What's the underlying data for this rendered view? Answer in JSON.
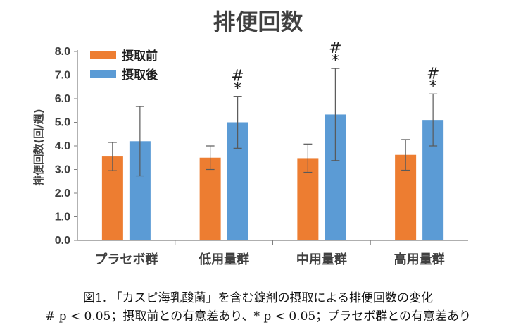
{
  "chart_data": {
    "type": "bar",
    "title": "排便回数",
    "ylabel": "排便回数(回/週)",
    "xlabel": "",
    "ylim": [
      0,
      8
    ],
    "yticks": [
      "0.0",
      "1.0",
      "2.0",
      "3.0",
      "4.0",
      "5.0",
      "6.0",
      "7.0",
      "8.0"
    ],
    "categories": [
      "プラセボ群",
      "低用量群",
      "中用量群",
      "高用量群"
    ],
    "legend_position": "top-left",
    "grid": false,
    "series": [
      {
        "name": "摂取前",
        "color": "#ED7D31",
        "values": [
          3.55,
          3.5,
          3.48,
          3.62
        ],
        "error_low": [
          0.6,
          0.5,
          0.6,
          0.65
        ],
        "error_high": [
          0.6,
          0.5,
          0.6,
          0.65
        ]
      },
      {
        "name": "摂取後",
        "color": "#5B9BD5",
        "values": [
          4.2,
          5.0,
          5.33,
          5.1
        ],
        "error_low": [
          1.47,
          1.1,
          1.95,
          1.1
        ],
        "error_high": [
          1.47,
          1.1,
          1.95,
          1.1
        ]
      }
    ],
    "annotations": [
      {
        "category": "低用量群",
        "series": "摂取後",
        "marks": [
          "#",
          "*"
        ]
      },
      {
        "category": "中用量群",
        "series": "摂取後",
        "marks": [
          "#",
          "*"
        ]
      },
      {
        "category": "高用量群",
        "series": "摂取後",
        "marks": [
          "#",
          "*"
        ]
      }
    ]
  },
  "caption": {
    "line1": "図1. 「カスピ海乳酸菌」を含む錠剤の摂取による排便回数の変化",
    "line2": "# p < 0.05；摂取前との有意差あり、* p < 0.05；プラセボ群との有意差あり"
  }
}
